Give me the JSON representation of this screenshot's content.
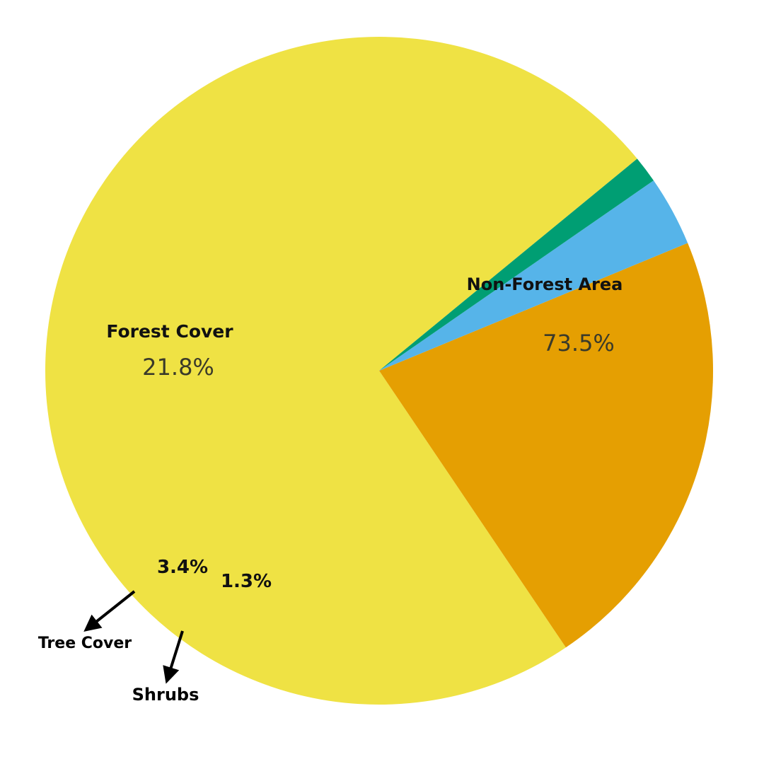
{
  "chart_data": {
    "type": "pie",
    "slices": [
      {
        "label": "Non-Forest Area",
        "value": 73.5,
        "pct_label": "73.5%",
        "color": "#EFE244"
      },
      {
        "label": "Forest Cover",
        "value": 21.8,
        "pct_label": "21.8%",
        "color": "#E59F02"
      },
      {
        "label": "Tree Cover",
        "value": 3.4,
        "pct_label": "3.4%",
        "color": "#56B4E9"
      },
      {
        "label": "Shrubs",
        "value": 1.3,
        "pct_label": "1.3%",
        "color": "#009E73"
      }
    ],
    "title": "",
    "legend": "none"
  }
}
